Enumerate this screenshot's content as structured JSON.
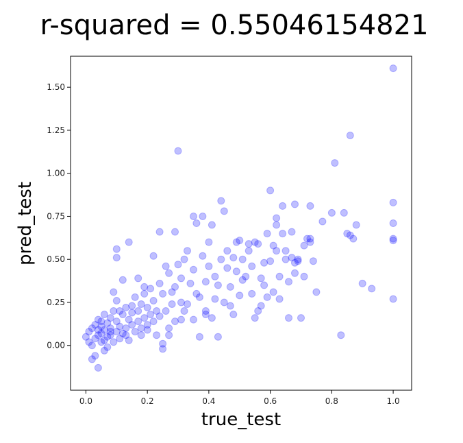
{
  "chart_data": {
    "type": "scatter",
    "title": "r-squared = 0.55046154821",
    "xlabel": "true_test",
    "ylabel": "pred_test",
    "xlim": [
      -0.05,
      1.06
    ],
    "ylim": [
      -0.26,
      1.68
    ],
    "xticks": [
      "0.0",
      "0.2",
      "0.4",
      "0.6",
      "0.8",
      "1.0"
    ],
    "yticks": [
      "0.00",
      "0.25",
      "0.50",
      "0.75",
      "1.00",
      "1.25",
      "1.50"
    ],
    "xtick_values": [
      0.0,
      0.2,
      0.4,
      0.6,
      0.8,
      1.0
    ],
    "ytick_values": [
      0.0,
      0.25,
      0.5,
      0.75,
      1.0,
      1.25,
      1.5
    ],
    "grid": false,
    "marker_color": "#0000ff",
    "marker_alpha": 0.25,
    "points": [
      [
        0.0,
        0.05
      ],
      [
        0.01,
        0.02
      ],
      [
        0.01,
        0.08
      ],
      [
        0.02,
        0.1
      ],
      [
        0.02,
        0.0
      ],
      [
        0.03,
        -0.06
      ],
      [
        0.03,
        0.12
      ],
      [
        0.03,
        0.04
      ],
      [
        0.04,
        0.09
      ],
      [
        0.04,
        0.06
      ],
      [
        0.04,
        0.15
      ],
      [
        0.05,
        0.02
      ],
      [
        0.05,
        0.11
      ],
      [
        0.05,
        0.07
      ],
      [
        0.06,
        0.18
      ],
      [
        0.06,
        0.03
      ],
      [
        0.06,
        0.09
      ],
      [
        0.07,
        0.13
      ],
      [
        0.07,
        0.05
      ],
      [
        0.07,
        -0.01
      ],
      [
        0.08,
        0.1
      ],
      [
        0.08,
        0.16
      ],
      [
        0.08,
        0.06
      ],
      [
        0.09,
        0.2
      ],
      [
        0.09,
        0.02
      ],
      [
        0.1,
        0.08
      ],
      [
        0.1,
        0.14
      ],
      [
        0.1,
        0.26
      ],
      [
        0.11,
        0.04
      ],
      [
        0.11,
        0.11
      ],
      [
        0.12,
        0.18
      ],
      [
        0.12,
        0.07
      ],
      [
        0.13,
        0.22
      ],
      [
        0.13,
        0.1
      ],
      [
        0.14,
        0.15
      ],
      [
        0.14,
        0.03
      ],
      [
        0.15,
        0.12
      ],
      [
        0.15,
        0.19
      ],
      [
        0.16,
        0.08
      ],
      [
        0.16,
        0.28
      ],
      [
        0.17,
        0.14
      ],
      [
        0.17,
        0.2
      ],
      [
        0.18,
        0.1
      ],
      [
        0.18,
        0.24
      ],
      [
        0.19,
        0.16
      ],
      [
        0.19,
        0.3
      ],
      [
        0.2,
        0.12
      ],
      [
        0.2,
        0.22
      ],
      [
        0.21,
        0.18
      ],
      [
        0.21,
        0.33
      ],
      [
        0.22,
        0.14
      ],
      [
        0.22,
        0.26
      ],
      [
        0.23,
        0.2
      ],
      [
        0.24,
        0.36
      ],
      [
        0.24,
        0.17
      ],
      [
        0.25,
        0.3
      ],
      [
        0.25,
        -0.02
      ],
      [
        0.26,
        0.2
      ],
      [
        0.27,
        0.42
      ],
      [
        0.27,
        0.1
      ],
      [
        0.28,
        0.24
      ],
      [
        0.29,
        0.34
      ],
      [
        0.29,
        0.14
      ],
      [
        0.3,
        1.13
      ],
      [
        0.3,
        0.47
      ],
      [
        0.31,
        0.25
      ],
      [
        0.31,
        0.39
      ],
      [
        0.32,
        0.2
      ],
      [
        0.33,
        0.55
      ],
      [
        0.34,
        0.36
      ],
      [
        0.35,
        0.15
      ],
      [
        0.35,
        0.44
      ],
      [
        0.36,
        0.71
      ],
      [
        0.37,
        0.05
      ],
      [
        0.37,
        0.28
      ],
      [
        0.38,
        0.52
      ],
      [
        0.39,
        0.2
      ],
      [
        0.39,
        0.37
      ],
      [
        0.4,
        0.6
      ],
      [
        0.41,
        0.16
      ],
      [
        0.41,
        0.7
      ],
      [
        0.42,
        0.4
      ],
      [
        0.43,
        0.05
      ],
      [
        0.44,
        0.84
      ],
      [
        0.44,
        0.5
      ],
      [
        0.45,
        0.25
      ],
      [
        0.46,
        0.55
      ],
      [
        0.47,
        0.34
      ],
      [
        0.48,
        0.18
      ],
      [
        0.49,
        0.6
      ],
      [
        0.49,
        0.43
      ],
      [
        0.5,
        0.29
      ],
      [
        0.51,
        0.5
      ],
      [
        0.52,
        0.4
      ],
      [
        0.53,
        0.59
      ],
      [
        0.54,
        0.3
      ],
      [
        0.55,
        0.16
      ],
      [
        0.56,
        0.59
      ],
      [
        0.57,
        0.23
      ],
      [
        0.58,
        0.48
      ],
      [
        0.59,
        0.65
      ],
      [
        0.6,
        0.9
      ],
      [
        0.61,
        0.31
      ],
      [
        0.62,
        0.74
      ],
      [
        0.62,
        0.55
      ],
      [
        0.63,
        0.27
      ],
      [
        0.64,
        0.81
      ],
      [
        0.65,
        0.5
      ],
      [
        0.66,
        0.16
      ],
      [
        0.67,
        0.66
      ],
      [
        0.68,
        0.82
      ],
      [
        0.68,
        0.42
      ],
      [
        0.69,
        0.5
      ],
      [
        0.7,
        0.16
      ],
      [
        0.71,
        0.4
      ],
      [
        0.73,
        0.81
      ],
      [
        0.73,
        0.62
      ],
      [
        0.74,
        0.49
      ],
      [
        0.75,
        0.31
      ],
      [
        0.8,
        0.77
      ],
      [
        0.81,
        1.06
      ],
      [
        0.83,
        0.06
      ],
      [
        0.84,
        0.77
      ],
      [
        0.86,
        1.22
      ],
      [
        0.86,
        0.64
      ],
      [
        0.87,
        0.62
      ],
      [
        0.88,
        0.7
      ],
      [
        0.93,
        0.33
      ],
      [
        1.0,
        1.61
      ],
      [
        1.0,
        0.83
      ],
      [
        1.0,
        0.71
      ],
      [
        1.0,
        0.62
      ],
      [
        1.0,
        0.61
      ],
      [
        1.0,
        0.27
      ],
      [
        0.02,
        -0.08
      ],
      [
        0.04,
        -0.13
      ],
      [
        0.06,
        -0.03
      ],
      [
        0.09,
        0.31
      ],
      [
        0.1,
        0.56
      ],
      [
        0.1,
        0.51
      ],
      [
        0.12,
        0.38
      ],
      [
        0.14,
        0.6
      ],
      [
        0.17,
        0.39
      ],
      [
        0.19,
        0.34
      ],
      [
        0.22,
        0.52
      ],
      [
        0.24,
        0.66
      ],
      [
        0.26,
        0.46
      ],
      [
        0.29,
        0.66
      ],
      [
        0.32,
        0.5
      ],
      [
        0.35,
        0.75
      ],
      [
        0.38,
        0.75
      ],
      [
        0.4,
        0.46
      ],
      [
        0.42,
        0.27
      ],
      [
        0.45,
        0.78
      ],
      [
        0.47,
        0.23
      ],
      [
        0.5,
        0.61
      ],
      [
        0.53,
        0.55
      ],
      [
        0.55,
        0.6
      ],
      [
        0.57,
        0.39
      ],
      [
        0.59,
        0.28
      ],
      [
        0.61,
        0.58
      ],
      [
        0.63,
        0.4
      ],
      [
        0.65,
        0.55
      ],
      [
        0.67,
        0.51
      ],
      [
        0.69,
        0.49
      ],
      [
        0.71,
        0.58
      ],
      [
        0.73,
        0.6
      ],
      [
        0.77,
        0.72
      ],
      [
        0.85,
        0.65
      ],
      [
        0.9,
        0.36
      ],
      [
        0.05,
        0.14
      ],
      [
        0.08,
        0.08
      ],
      [
        0.11,
        0.2
      ],
      [
        0.13,
        0.06
      ],
      [
        0.15,
        0.23
      ],
      [
        0.18,
        0.06
      ],
      [
        0.2,
        0.09
      ],
      [
        0.23,
        0.06
      ],
      [
        0.25,
        0.01
      ],
      [
        0.27,
        0.06
      ],
      [
        0.28,
        0.31
      ],
      [
        0.31,
        0.15
      ],
      [
        0.33,
        0.24
      ],
      [
        0.36,
        0.3
      ],
      [
        0.39,
        0.18
      ],
      [
        0.43,
        0.35
      ],
      [
        0.46,
        0.45
      ],
      [
        0.48,
        0.51
      ],
      [
        0.51,
        0.38
      ],
      [
        0.54,
        0.46
      ],
      [
        0.56,
        0.2
      ],
      [
        0.58,
        0.35
      ],
      [
        0.6,
        0.49
      ],
      [
        0.62,
        0.7
      ],
      [
        0.64,
        0.65
      ],
      [
        0.66,
        0.37
      ],
      [
        0.68,
        0.48
      ],
      [
        0.72,
        0.62
      ]
    ]
  }
}
